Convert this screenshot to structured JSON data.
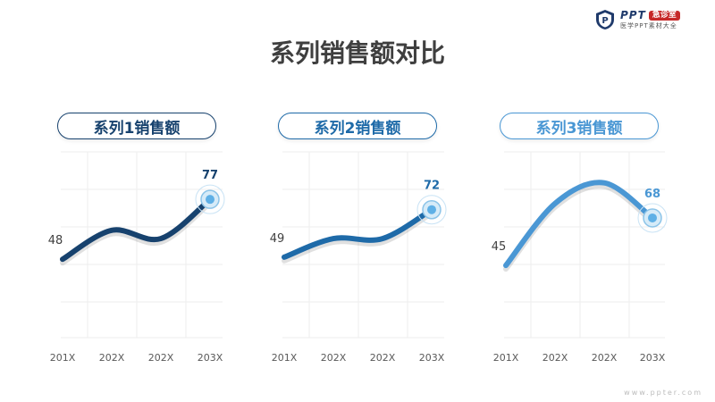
{
  "logo": {
    "brand": "PPT",
    "badge": "急诊室",
    "subtitle": "医学PPT素材大全"
  },
  "title": "系列销售额对比",
  "website": "www.ppter.com",
  "colors": [
    "#17426e",
    "#1e6aa8",
    "#4a97d4"
  ],
  "chart_data": [
    {
      "type": "line",
      "title": "系列1销售额",
      "categories": [
        "201X",
        "202X",
        "202X",
        "203X"
      ],
      "series": [
        {
          "values": [
            48,
            62,
            58,
            77
          ]
        }
      ],
      "smooth": true,
      "grid": true,
      "data_labels": [
        "48",
        "77"
      ]
    },
    {
      "type": "line",
      "title": "系列2销售额",
      "categories": [
        "201X",
        "202X",
        "202X",
        "203X"
      ],
      "series": [
        {
          "values": [
            49,
            58,
            58,
            72
          ]
        }
      ],
      "smooth": true,
      "grid": true,
      "data_labels": [
        "49",
        "72"
      ]
    },
    {
      "type": "line",
      "title": "系列3销售额",
      "categories": [
        "201X",
        "202X",
        "202X",
        "203X"
      ],
      "series": [
        {
          "values": [
            45,
            75,
            85,
            68
          ]
        }
      ],
      "smooth": true,
      "grid": true,
      "data_labels": [
        "45",
        "68"
      ]
    }
  ]
}
